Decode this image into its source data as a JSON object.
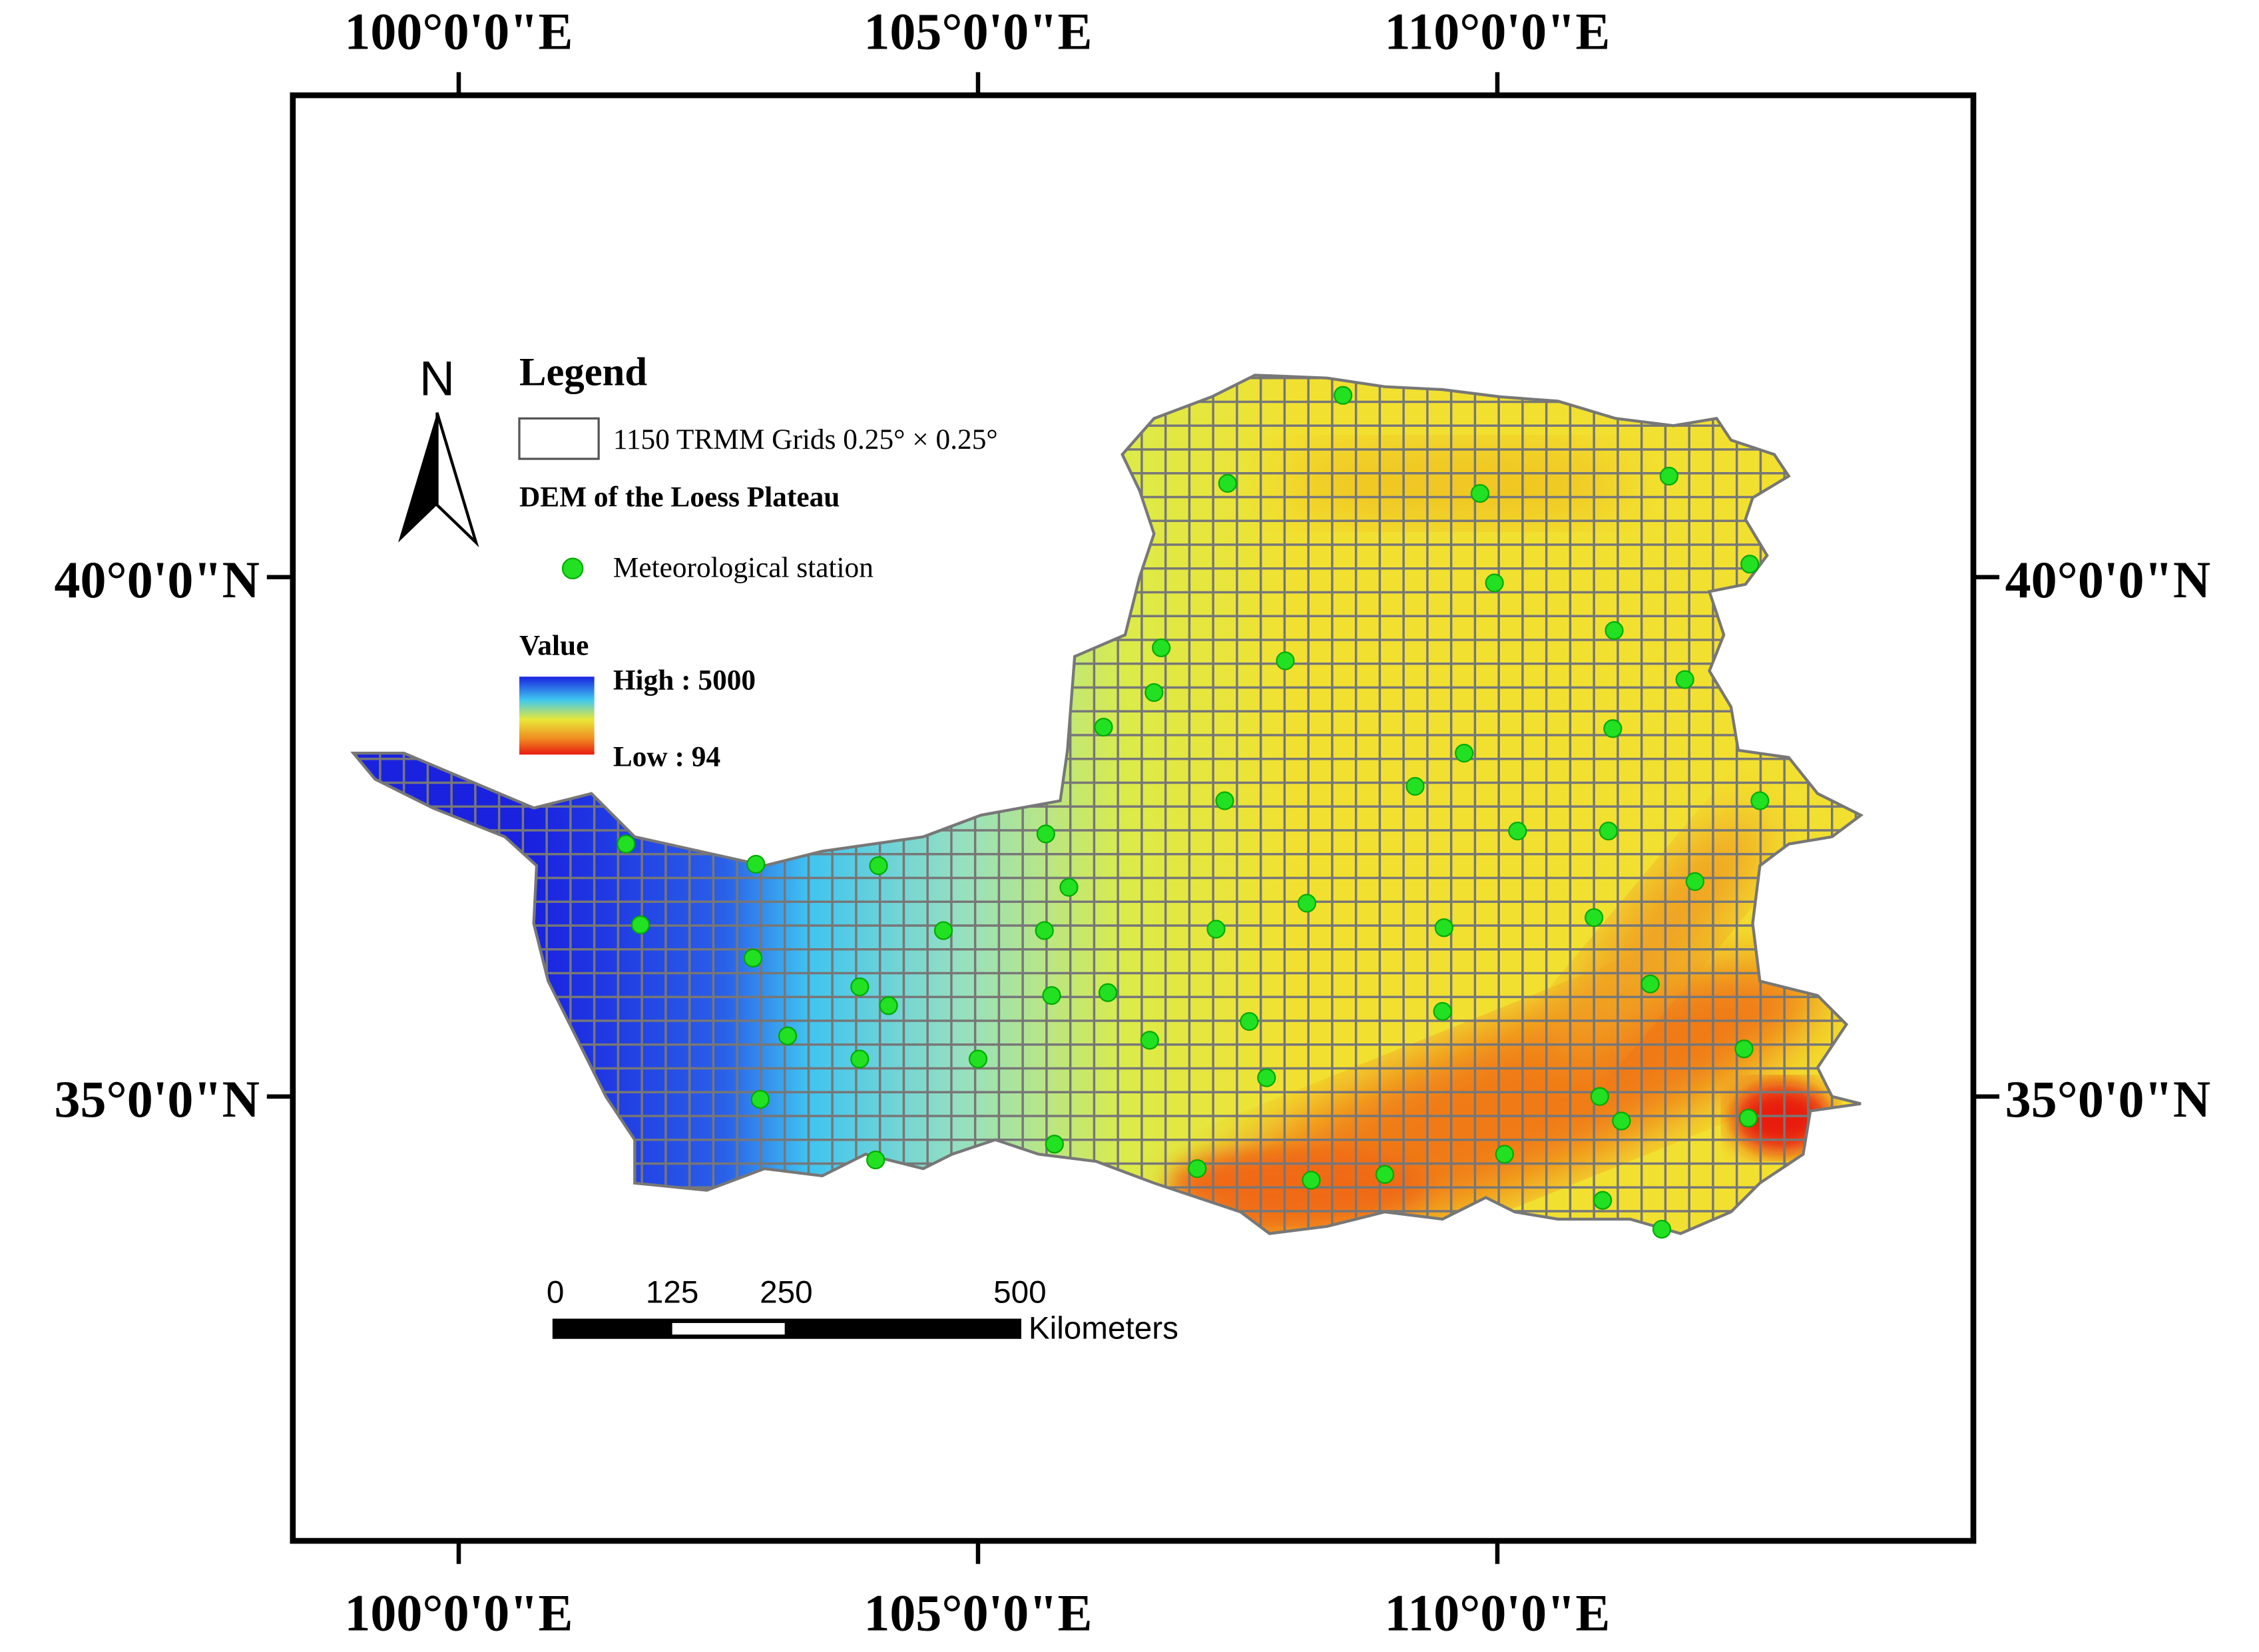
{
  "north": "N",
  "legend": {
    "title": "Legend",
    "grids": "1150 TRMM Grids 0.25° × 0.25°",
    "dem": "DEM of the Loess Plateau",
    "station": "Meteorological station",
    "value_title": "Value",
    "high": "High : 5000",
    "low": "Low : 94"
  },
  "scale_bar": {
    "labels": [
      "0",
      "125",
      "250",
      "500"
    ],
    "unit": "Kilometers"
  },
  "longitude_labels": [
    "100°0'0\"E",
    "105°0'0\"E",
    "110°0'0\"E"
  ],
  "latitude_labels": [
    "40°0'0\"N",
    "35°0'0\"N"
  ]
}
